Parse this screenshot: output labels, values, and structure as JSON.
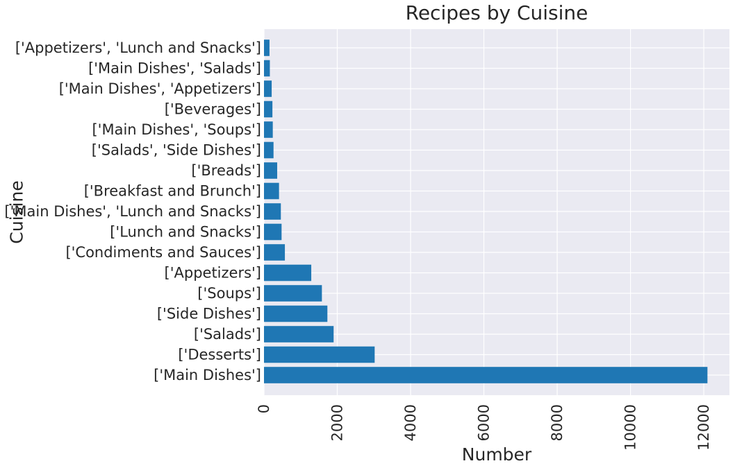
{
  "chart_data": {
    "type": "bar",
    "orientation": "horizontal",
    "title": "Recipes by Cuisine",
    "xlabel": "Number",
    "ylabel": "Cuisine",
    "xlim": [
      0,
      12700
    ],
    "xticks": [
      "0",
      "2000",
      "4000",
      "6000",
      "8000",
      "10000",
      "12000"
    ],
    "grid": true,
    "colors": {
      "bar": "#1f77b4",
      "plot_bg": "#eaeaf2",
      "grid": "#ffffff"
    },
    "categories": [
      "['Main Dishes']",
      "['Desserts']",
      "['Salads']",
      "['Side Dishes']",
      "['Soups']",
      "['Appetizers']",
      "['Condiments and Sauces']",
      "['Lunch and Snacks']",
      "['Main Dishes', 'Lunch and Snacks']",
      "['Breakfast and Brunch']",
      "['Breads']",
      "['Salads', 'Side Dishes']",
      "['Main Dishes', 'Soups']",
      "['Beverages']",
      "['Main Dishes', 'Appetizers']",
      "['Main Dishes', 'Salads']",
      "['Appetizers', 'Lunch and Snacks']"
    ],
    "values": [
      12100,
      3020,
      1900,
      1730,
      1580,
      1290,
      570,
      480,
      460,
      410,
      360,
      260,
      240,
      230,
      210,
      160,
      150
    ]
  }
}
